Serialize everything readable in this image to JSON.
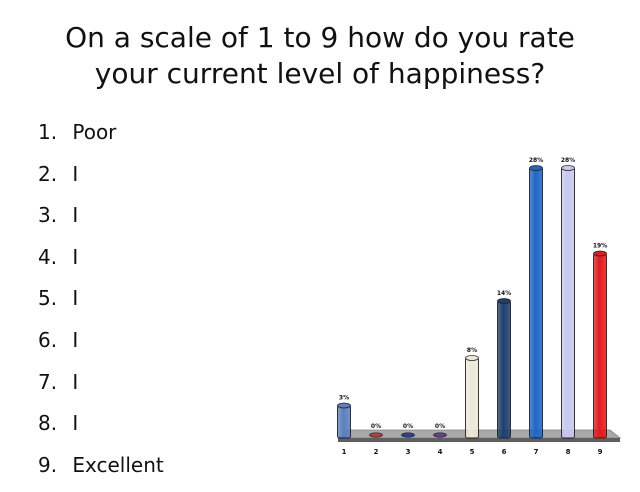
{
  "title_lines": [
    "On a scale of 1 to 9 how do you rate",
    "your current level of happiness?"
  ],
  "options": [
    {
      "num": "1.",
      "label": "Poor"
    },
    {
      "num": "2.",
      "label": "I"
    },
    {
      "num": "3.",
      "label": "I"
    },
    {
      "num": "4.",
      "label": "I"
    },
    {
      "num": "5.",
      "label": "I"
    },
    {
      "num": "6.",
      "label": "I"
    },
    {
      "num": "7.",
      "label": "I"
    },
    {
      "num": "8.",
      "label": "I"
    },
    {
      "num": "9.",
      "label": "Excellent"
    }
  ],
  "chart_data": {
    "type": "bar",
    "categories": [
      "1",
      "2",
      "3",
      "4",
      "5",
      "6",
      "7",
      "8",
      "9"
    ],
    "values": [
      3,
      0,
      0,
      0,
      8,
      14,
      28,
      28,
      19
    ],
    "data_labels": [
      "3%",
      "0%",
      "0%",
      "0%",
      "8%",
      "14%",
      "28%",
      "28%",
      "19%"
    ],
    "ylim": [
      0,
      28
    ],
    "colors": [
      "#5b7fbf",
      "#b0413e",
      "#2f3f9f",
      "#6b3f8f",
      "#eee8d5",
      "#1f3f6f",
      "#1f66c7",
      "#c8c8f0",
      "#e31a1c"
    ],
    "grid": false,
    "legend": "none"
  }
}
